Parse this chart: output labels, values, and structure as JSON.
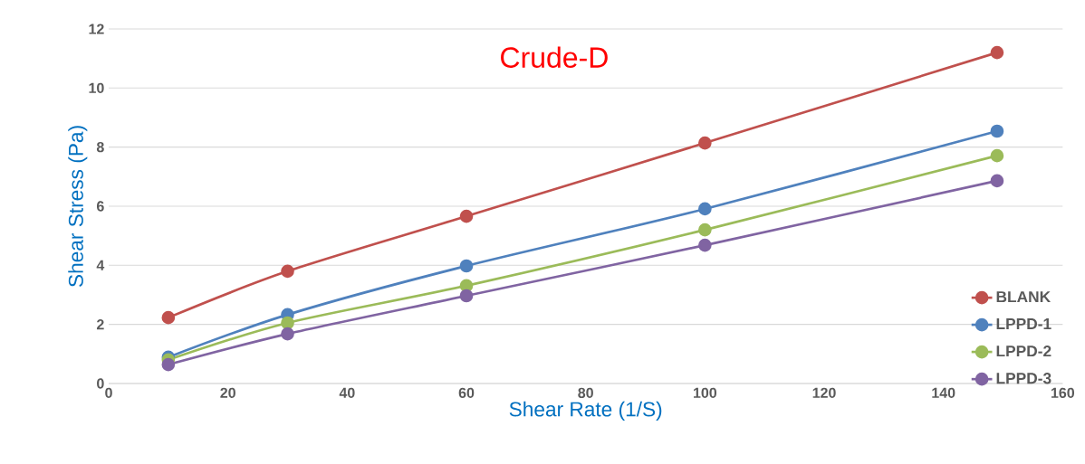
{
  "chart_data": {
    "type": "line",
    "title": "Crude-D",
    "xlabel": "Shear Rate (1/S)",
    "ylabel": "Shear Stress (Pa)",
    "x": [
      10,
      30,
      60,
      100,
      149
    ],
    "series": [
      {
        "name": "BLANK",
        "color": "#c0504d",
        "values": [
          2.23,
          3.8,
          5.66,
          8.14,
          11.2
        ]
      },
      {
        "name": "LPPD-1",
        "color": "#4f81bd",
        "values": [
          0.89,
          2.33,
          3.98,
          5.91,
          8.54
        ]
      },
      {
        "name": "LPPD-2",
        "color": "#9bbb59",
        "values": [
          0.8,
          2.05,
          3.31,
          5.2,
          7.71
        ]
      },
      {
        "name": "LPPD-3",
        "color": "#8064a2",
        "values": [
          0.64,
          1.68,
          2.97,
          4.68,
          6.86
        ]
      }
    ],
    "xlim": [
      0,
      160
    ],
    "xticks": [
      0,
      20,
      40,
      60,
      80,
      100,
      120,
      140,
      160
    ],
    "ylim": [
      0,
      12
    ],
    "yticks": [
      0,
      2,
      4,
      6,
      8,
      10,
      12
    ],
    "grid": "y",
    "legend": "bottom right",
    "marker": "circle",
    "line_style": "solid"
  }
}
